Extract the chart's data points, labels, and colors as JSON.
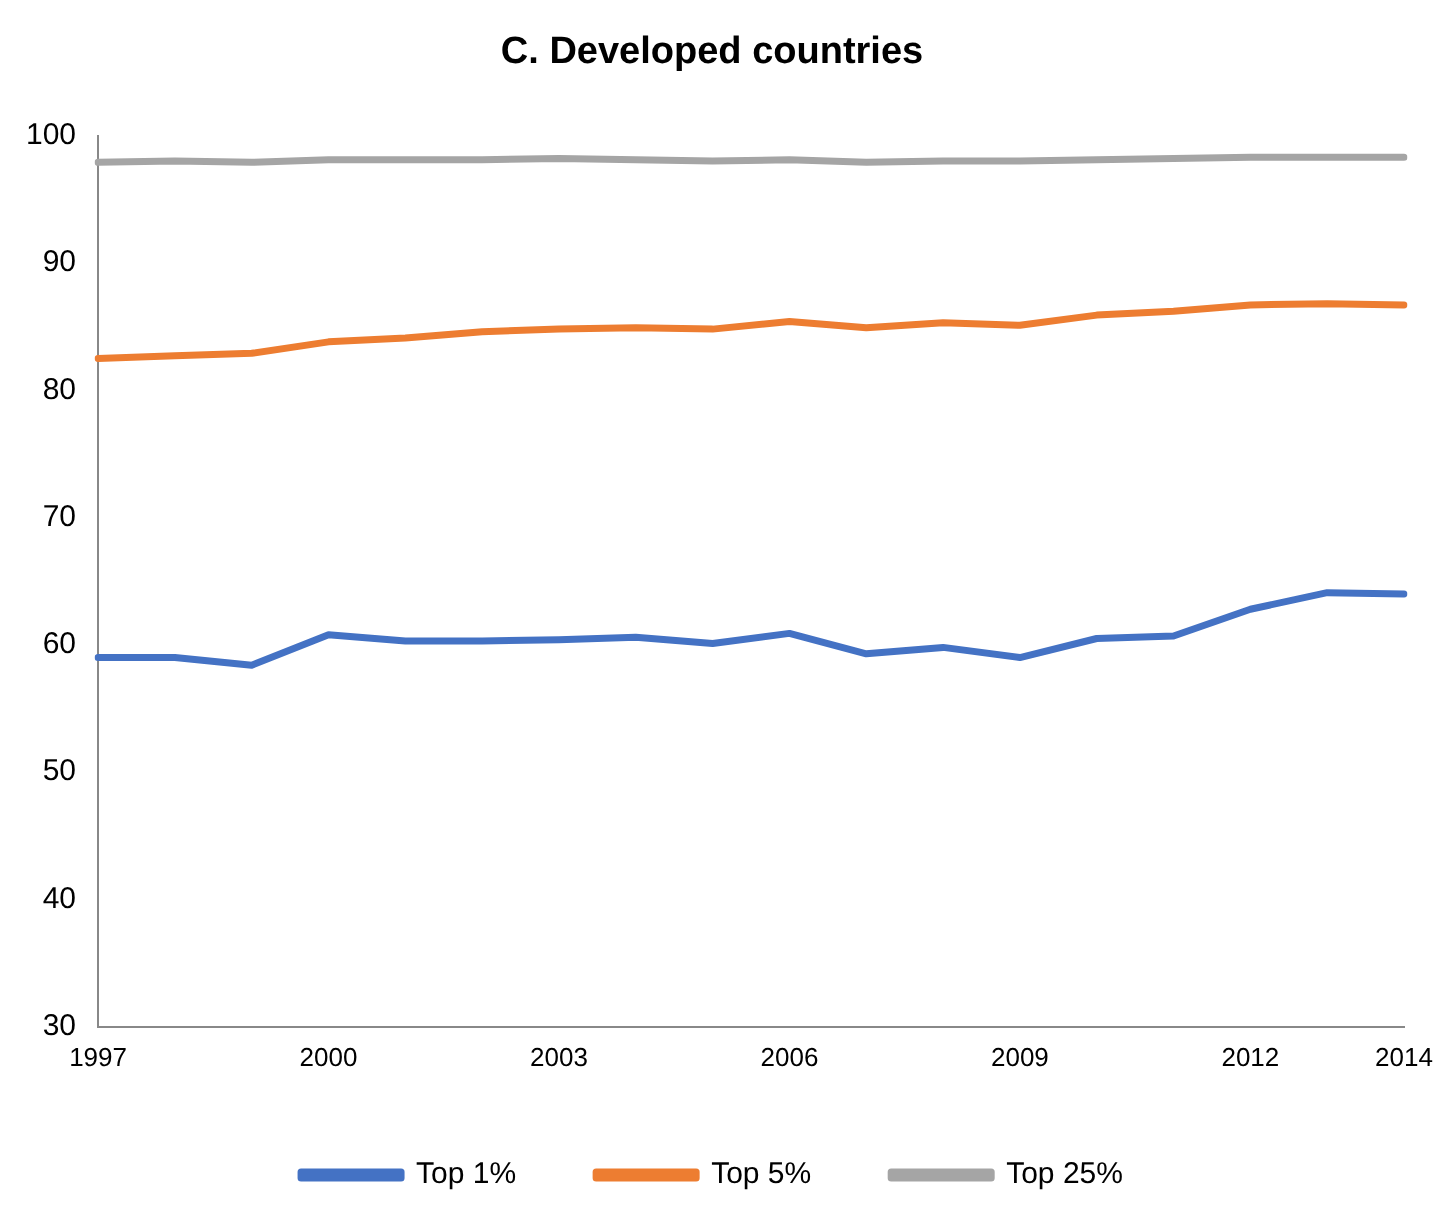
{
  "chart_data": {
    "type": "line",
    "title": "C. Developed countries",
    "categories": [
      "1997",
      null,
      null,
      "2000",
      null,
      null,
      "2003",
      null,
      null,
      "2006",
      null,
      null,
      "2009",
      null,
      null,
      "2012",
      null,
      "2014"
    ],
    "series": [
      {
        "name": "Top 1%",
        "color": "#4472c4",
        "values": [
          59.0,
          59.0,
          58.4,
          60.8,
          60.3,
          60.3,
          60.4,
          60.6,
          60.1,
          60.9,
          59.3,
          59.8,
          59.0,
          60.5,
          60.7,
          62.8,
          64.1,
          64.0
        ]
      },
      {
        "name": "Top 5%",
        "color": "#ed7d31",
        "values": [
          82.5,
          82.7,
          82.9,
          83.8,
          84.1,
          84.6,
          84.8,
          84.9,
          84.8,
          85.4,
          84.9,
          85.3,
          85.1,
          85.9,
          86.2,
          86.7,
          86.8,
          86.7
        ]
      },
      {
        "name": "Top 25%",
        "color": "#a5a5a5",
        "values": [
          97.9,
          98.0,
          97.9,
          98.1,
          98.1,
          98.1,
          98.2,
          98.1,
          98.0,
          98.1,
          97.9,
          98.0,
          98.0,
          98.1,
          98.2,
          98.3,
          98.3,
          98.3
        ]
      }
    ],
    "ylim": [
      30,
      100
    ],
    "yticks": [
      30,
      40,
      50,
      60,
      70,
      80,
      90,
      100
    ],
    "grid": false,
    "legend": "bottom",
    "marker": "none",
    "line_style": "solid"
  }
}
